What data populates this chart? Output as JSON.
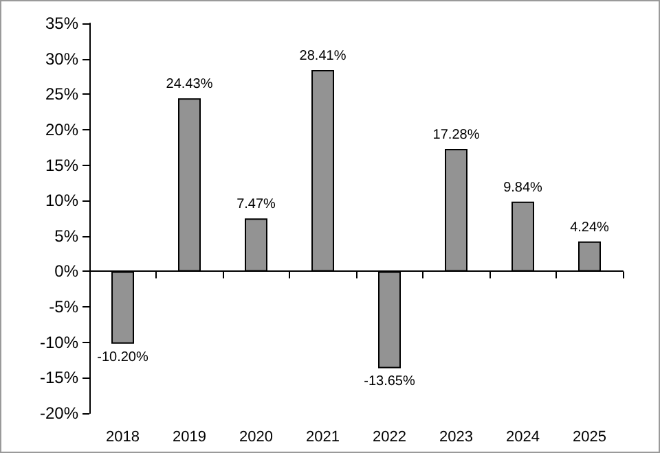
{
  "chart_data": {
    "type": "bar",
    "categories": [
      "2018",
      "2019",
      "2020",
      "2021",
      "2022",
      "2023",
      "2024",
      "2025"
    ],
    "values": [
      -10.2,
      24.43,
      7.47,
      28.41,
      -13.65,
      17.28,
      9.84,
      4.24
    ],
    "value_labels": [
      "-10.20%",
      "24.43%",
      "7.47%",
      "28.41%",
      "-13.65%",
      "17.28%",
      "9.84%",
      "4.24%"
    ],
    "color": "#939393",
    "ylim": [
      -20,
      35
    ],
    "yticks": [
      {
        "value": -20,
        "label": "-20%"
      },
      {
        "value": -15,
        "label": "-15%"
      },
      {
        "value": -10,
        "label": "-10%"
      },
      {
        "value": -5,
        "label": "-5%"
      },
      {
        "value": 0,
        "label": "0%"
      },
      {
        "value": 5,
        "label": "5%"
      },
      {
        "value": 10,
        "label": "10%"
      },
      {
        "value": 15,
        "label": "15%"
      },
      {
        "value": 20,
        "label": "20%"
      },
      {
        "value": 25,
        "label": "25%"
      },
      {
        "value": 30,
        "label": "30%"
      },
      {
        "value": 35,
        "label": "35%"
      }
    ]
  }
}
